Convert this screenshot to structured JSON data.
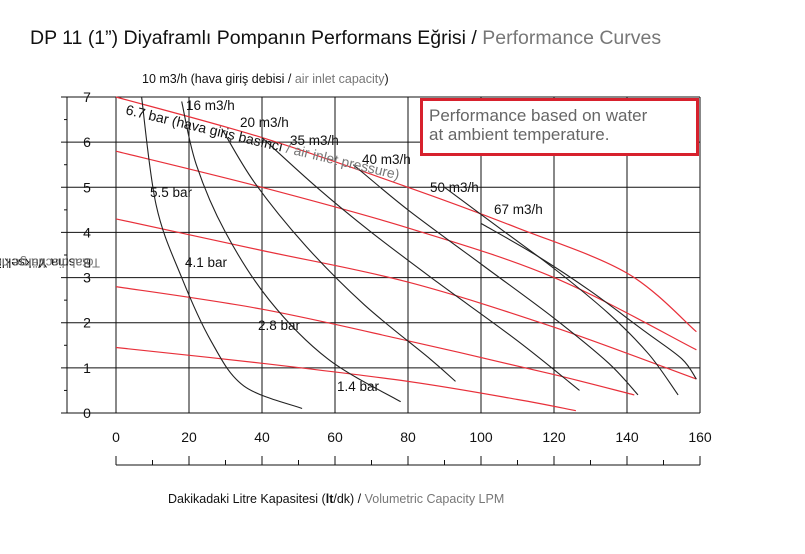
{
  "title": {
    "tr": "DP 11  (1”) Diyaframlı Pompanın Performans Eğrisi",
    "sep": " / ",
    "en": "Performance Curves"
  },
  "air_header": {
    "tr": "10 m3/h (hava giriş debisi",
    "sep": " / ",
    "en": "air inlet capacity",
    "close": ")"
  },
  "y_axis_title": {
    "tr": "Basma Yüksekliği",
    "sep": " / ",
    "en": "Total discharge head"
  },
  "x_axis_title": {
    "pre": "Dakikadaki Litre Kapasitesi (",
    "bold": "lt",
    "post": "/dk)",
    "sep": " / ",
    "en": "Volumetric Capacity LPM"
  },
  "note": "Performance based on water\nat ambient temperature.",
  "colors": {
    "pressure_curve": "#e8303a",
    "air_curve": "#222222",
    "grid": "#111111",
    "note_border": "#d7212d",
    "english_text": "#777777"
  },
  "chart_data": {
    "type": "line",
    "xlim": [
      0,
      160
    ],
    "ylim": [
      0,
      7
    ],
    "x_ticks": [
      "0",
      "20",
      "40",
      "60",
      "80",
      "100",
      "120",
      "140",
      "160"
    ],
    "y_ticks": [
      "0",
      "1",
      "2",
      "3",
      "4",
      "5",
      "6",
      "7"
    ],
    "grid": true,
    "pressure_series": [
      {
        "name": "6.7 bar (hava giriş basıncı / air inlet pressure)",
        "points": [
          [
            0,
            7.0
          ],
          [
            40,
            6.1
          ],
          [
            80,
            5.0
          ],
          [
            110,
            4.1
          ],
          [
            140,
            3.1
          ],
          [
            159,
            1.8
          ]
        ]
      },
      {
        "name": "5.5 bar",
        "points": [
          [
            0,
            5.8
          ],
          [
            40,
            5.0
          ],
          [
            80,
            4.1
          ],
          [
            120,
            3.0
          ],
          [
            159,
            1.4
          ]
        ]
      },
      {
        "name": "4.1 bar",
        "points": [
          [
            0,
            4.3
          ],
          [
            40,
            3.6
          ],
          [
            80,
            2.9
          ],
          [
            120,
            1.9
          ],
          [
            159,
            0.75
          ]
        ]
      },
      {
        "name": "2.8 bar",
        "points": [
          [
            0,
            2.8
          ],
          [
            40,
            2.3
          ],
          [
            80,
            1.6
          ],
          [
            120,
            0.85
          ],
          [
            142,
            0.4
          ]
        ]
      },
      {
        "name": "1.4 bar",
        "points": [
          [
            0,
            1.45
          ],
          [
            40,
            1.1
          ],
          [
            80,
            0.7
          ],
          [
            110,
            0.3
          ],
          [
            126,
            0.05
          ]
        ]
      }
    ],
    "air_series": [
      {
        "name": "10 m3/h",
        "points": [
          [
            7,
            7.0
          ],
          [
            11,
            4.6
          ],
          [
            18,
            3.0
          ],
          [
            26,
            1.6
          ],
          [
            35,
            0.6
          ],
          [
            51,
            0.1
          ]
        ]
      },
      {
        "name": "16 m3/h",
        "points": [
          [
            18,
            6.9
          ],
          [
            22,
            5.5
          ],
          [
            30,
            4.0
          ],
          [
            42,
            2.5
          ],
          [
            58,
            1.2
          ],
          [
            78,
            0.25
          ]
        ]
      },
      {
        "name": "20 m3/h",
        "points": [
          [
            29,
            6.3
          ],
          [
            38,
            5.1
          ],
          [
            52,
            3.7
          ],
          [
            68,
            2.4
          ],
          [
            86,
            1.2
          ],
          [
            93,
            0.7
          ]
        ]
      },
      {
        "name": "35 m3/h",
        "points": [
          [
            40,
            6.1
          ],
          [
            55,
            5.0
          ],
          [
            70,
            4.0
          ],
          [
            88,
            2.9
          ],
          [
            110,
            1.6
          ],
          [
            127,
            0.5
          ]
        ]
      },
      {
        "name": "40 m3/h",
        "points": [
          [
            65,
            5.5
          ],
          [
            80,
            4.5
          ],
          [
            100,
            3.3
          ],
          [
            120,
            2.1
          ],
          [
            135,
            1.1
          ],
          [
            143,
            0.4
          ]
        ]
      },
      {
        "name": "50 m3/h",
        "points": [
          [
            90,
            5.0
          ],
          [
            105,
            4.1
          ],
          [
            120,
            3.2
          ],
          [
            135,
            2.2
          ],
          [
            146,
            1.3
          ],
          [
            154,
            0.4
          ]
        ]
      },
      {
        "name": "67 m3/h",
        "points": [
          [
            100,
            4.2
          ],
          [
            115,
            3.5
          ],
          [
            130,
            2.7
          ],
          [
            145,
            1.8
          ],
          [
            155,
            1.2
          ],
          [
            159,
            0.75
          ]
        ]
      }
    ],
    "labels": [
      {
        "text": "16 m3/h"
      },
      {
        "text": "20 m3/h"
      },
      {
        "text": "35 m3/h"
      },
      {
        "text": "40 m3/h"
      },
      {
        "text": "50 m3/h"
      },
      {
        "text": "67 m3/h"
      },
      {
        "text": "6.7 bar (hava giriş basıncı / air inlet pressure)"
      },
      {
        "text": "5.5 bar"
      },
      {
        "text": "4.1 bar"
      },
      {
        "text": "2.8 bar"
      },
      {
        "text": "1.4 bar"
      }
    ]
  }
}
